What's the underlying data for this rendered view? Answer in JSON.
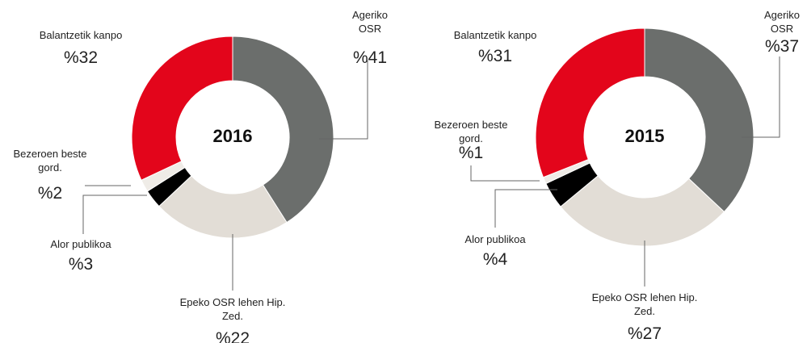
{
  "chart_data": [
    {
      "type": "donut",
      "title": "2016",
      "categories": [
        "Ageriko OSR",
        "Epeko OSR lehen Hip. Zed.",
        "Alor publikoa",
        "Bezeroen beste gord.",
        "Balantzetik kanpo"
      ],
      "values": [
        41,
        22,
        3,
        2,
        32
      ],
      "value_labels": [
        "%41",
        "%22",
        "%3",
        "%2",
        "%32"
      ],
      "colors": [
        "#6b6e6c",
        "#e2ddd6",
        "#000000",
        "#efece7",
        "#e3051b"
      ]
    },
    {
      "type": "donut",
      "title": "2015",
      "categories": [
        "Ageriko OSR",
        "Epeko OSR lehen Hip. Zed.",
        "Alor publikoa",
        "Bezeroen beste gord.",
        "Balantzetik kanpo"
      ],
      "values": [
        37,
        27,
        4,
        1,
        31
      ],
      "value_labels": [
        "%37",
        "%27",
        "%4",
        "%1",
        "%31"
      ],
      "colors": [
        "#6b6e6c",
        "#e2ddd6",
        "#000000",
        "#efece7",
        "#e3051b"
      ]
    }
  ]
}
